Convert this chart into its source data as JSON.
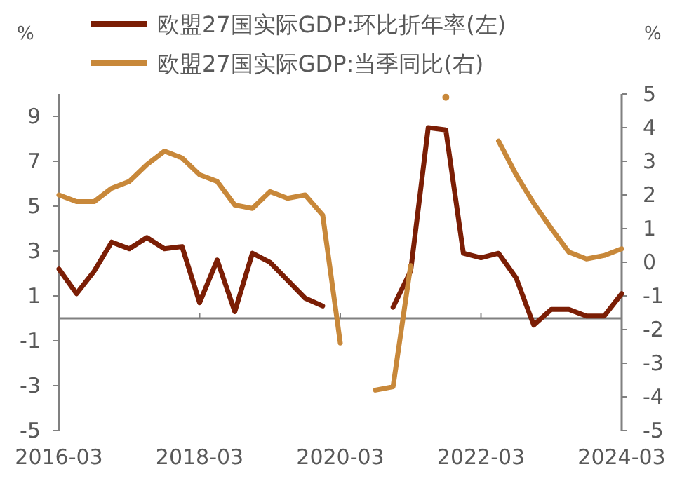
{
  "chart_data": {
    "type": "line",
    "ylabel": "%",
    "y2label": "%",
    "legend": "top",
    "grid": false,
    "x": [
      "2016-03",
      "2016-06",
      "2016-09",
      "2016-12",
      "2017-03",
      "2017-06",
      "2017-09",
      "2017-12",
      "2018-03",
      "2018-06",
      "2018-09",
      "2018-12",
      "2019-03",
      "2019-06",
      "2019-09",
      "2019-12",
      "2020-03",
      "2020-06",
      "2020-09",
      "2020-12",
      "2021-03",
      "2021-06",
      "2021-09",
      "2021-12",
      "2022-03",
      "2022-06",
      "2022-09",
      "2022-12",
      "2023-03",
      "2023-06",
      "2023-09",
      "2023-12",
      "2024-03"
    ],
    "xlim": [
      "2016-03",
      "2024-03"
    ],
    "xticks": [
      "2016-03",
      "2018-03",
      "2020-03",
      "2022-03",
      "2024-03"
    ],
    "ylim": [
      -5,
      10
    ],
    "yticks": [
      -5,
      -3,
      -1,
      1,
      3,
      5,
      7,
      9
    ],
    "y2lim": [
      -5,
      5
    ],
    "y2ticks": [
      -5,
      -4,
      -3,
      -2,
      -1,
      0,
      1,
      2,
      3,
      4,
      5
    ],
    "series": [
      {
        "name": "欧盟27国实际GDP:环比折年率(左)",
        "color": "#7b1e05",
        "values": [
          2.2,
          1.1,
          2.1,
          3.4,
          3.1,
          3.6,
          3.1,
          3.2,
          0.7,
          2.6,
          0.3,
          2.9,
          2.5,
          1.7,
          0.9,
          0.55,
          null,
          null,
          null,
          0.5,
          2.1,
          8.5,
          8.4,
          2.9,
          2.7,
          2.9,
          1.8,
          -0.3,
          0.4,
          0.4,
          0.1,
          0.1,
          1.1
        ]
      },
      {
        "name": "欧盟27国实际GDP:当季同比(右)",
        "color": "#c8883a",
        "axis": "y2",
        "values": [
          2.0,
          1.8,
          1.8,
          2.2,
          2.4,
          2.9,
          3.3,
          3.1,
          2.6,
          2.4,
          1.7,
          1.6,
          2.1,
          1.9,
          2.0,
          1.4,
          -2.4,
          null,
          -3.8,
          -3.7,
          -0.1,
          null,
          4.9,
          null,
          null,
          3.6,
          2.6,
          1.75,
          1.0,
          0.3,
          0.1,
          0.2,
          0.4
        ]
      }
    ]
  }
}
